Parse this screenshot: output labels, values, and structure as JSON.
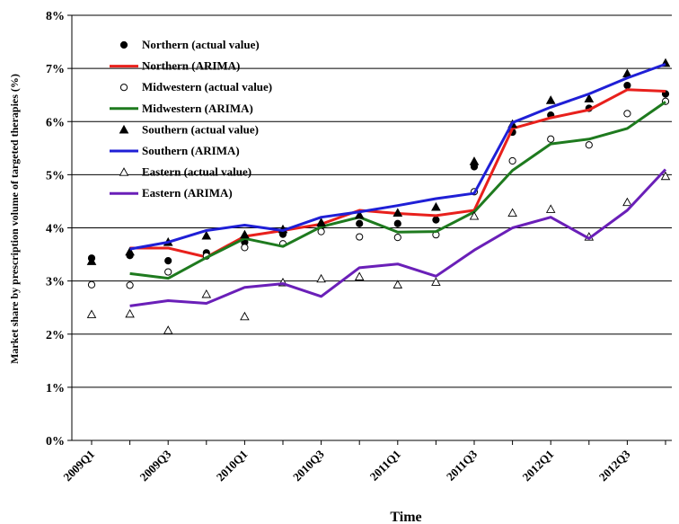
{
  "chart_data": {
    "type": "line",
    "xlabel": "Time",
    "ylabel": "Market share by prescription volume of targeted therapies (%)",
    "y_tick_labels": [
      "0%",
      "1%",
      "2%",
      "3%",
      "4%",
      "5%",
      "6%",
      "7%",
      "8%"
    ],
    "y_ticks": [
      0,
      1,
      2,
      3,
      4,
      5,
      6,
      7,
      8
    ],
    "ylim": [
      0,
      8
    ],
    "grid": "horizontal",
    "legend_placement": "top-left",
    "x": [
      "2009Q1",
      "2009Q2",
      "2009Q3",
      "2009Q4",
      "2010Q1",
      "2010Q2",
      "2010Q3",
      "2010Q4",
      "2011Q1",
      "2011Q2",
      "2011Q3",
      "2011Q4",
      "2012Q1",
      "2012Q2",
      "2012Q3",
      "2012Q4"
    ],
    "x_tick_labels": [
      "2009Q1",
      "2009Q3",
      "2010Q1",
      "2010Q3",
      "2011Q1",
      "2011Q3",
      "2012Q1",
      "2012Q3"
    ],
    "series": [
      {
        "name": "Northern (actual value)",
        "style": "filled-circle",
        "color": "#000000",
        "values": [
          3.43,
          3.48,
          3.38,
          3.53,
          3.73,
          3.88,
          4.03,
          4.08,
          4.08,
          4.15,
          5.15,
          5.8,
          6.12,
          6.25,
          6.68,
          6.52
        ]
      },
      {
        "name": "Northern (ARIMA)",
        "style": "line",
        "color": "#e8201c",
        "values": [
          null,
          3.62,
          3.62,
          3.45,
          3.84,
          3.95,
          4.07,
          4.33,
          4.27,
          4.23,
          4.33,
          5.87,
          6.07,
          6.22,
          6.6,
          6.57
        ]
      },
      {
        "name": "Midwestern (actual value)",
        "style": "open-circle",
        "color": "#000000",
        "values": [
          2.93,
          2.92,
          3.17,
          3.47,
          3.63,
          3.7,
          3.93,
          3.83,
          3.82,
          3.87,
          4.68,
          5.26,
          5.67,
          5.56,
          6.15,
          6.38
        ]
      },
      {
        "name": "Midwestern (ARIMA)",
        "style": "line",
        "color": "#1e7a1e",
        "values": [
          null,
          3.14,
          3.05,
          3.44,
          3.8,
          3.65,
          4.02,
          4.2,
          3.92,
          3.93,
          4.3,
          5.08,
          5.58,
          5.67,
          5.87,
          6.37
        ]
      },
      {
        "name": "Southern (actual value)",
        "style": "filled-triangle",
        "color": "#000000",
        "values": [
          3.37,
          3.55,
          3.73,
          3.85,
          3.87,
          3.97,
          4.1,
          4.24,
          4.28,
          4.39,
          5.25,
          5.95,
          6.4,
          6.43,
          6.9,
          7.1
        ]
      },
      {
        "name": "Southern (ARIMA)",
        "style": "line",
        "color": "#1f1fd6",
        "values": [
          null,
          3.6,
          3.73,
          3.95,
          4.05,
          3.95,
          4.2,
          4.3,
          4.42,
          4.55,
          4.65,
          5.98,
          6.27,
          6.52,
          6.82,
          7.08
        ]
      },
      {
        "name": "Eastern (actual value)",
        "style": "open-triangle",
        "color": "#000000",
        "values": [
          2.37,
          2.38,
          2.07,
          2.75,
          2.33,
          2.97,
          3.04,
          3.08,
          2.93,
          2.98,
          4.22,
          4.28,
          4.35,
          3.83,
          4.48,
          4.97
        ]
      },
      {
        "name": "Eastern (ARIMA)",
        "style": "line",
        "color": "#6a1fb8",
        "values": [
          null,
          2.53,
          2.63,
          2.58,
          2.88,
          2.95,
          2.71,
          3.25,
          3.32,
          3.09,
          3.58,
          4.0,
          4.2,
          3.8,
          4.33,
          5.1
        ]
      }
    ]
  }
}
